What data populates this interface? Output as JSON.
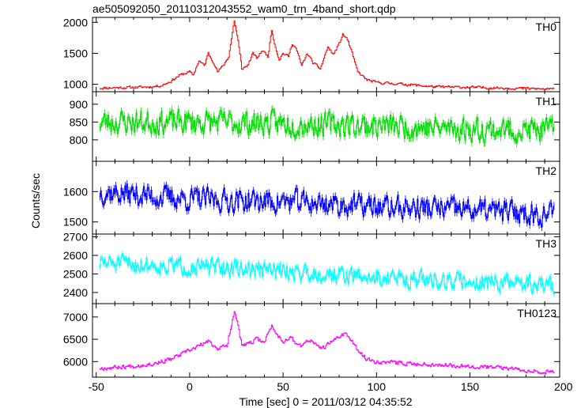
{
  "title": "ae505092050_20110312043552_wam0_trn_4band_short.qdp",
  "chart_data": {
    "type": "line",
    "title": "ae505092050_20110312043552_wam0_trn_4band_short.qdp",
    "xlabel": "Time [sec] 0 = 2011/03/12 04:35:52",
    "ylabel": "Counts/sec",
    "xlim": [
      -52,
      198
    ],
    "x_ticks": [
      -50,
      0,
      50,
      100,
      150,
      200
    ],
    "x_start": -48,
    "x_step": 0.5,
    "panels": [
      {
        "name": "TH0",
        "color": "#ff0000",
        "ylim": [
          880,
          2080
        ],
        "y_ticks": [
          1000,
          1500,
          2000
        ],
        "keypoints": [
          [
            -48,
            940
          ],
          [
            -30,
            950
          ],
          [
            -20,
            960
          ],
          [
            -15,
            980
          ],
          [
            -10,
            1050
          ],
          [
            -5,
            1150
          ],
          [
            0,
            1200
          ],
          [
            2,
            1150
          ],
          [
            5,
            1380
          ],
          [
            8,
            1300
          ],
          [
            10,
            1500
          ],
          [
            13,
            1350
          ],
          [
            15,
            1200
          ],
          [
            18,
            1300
          ],
          [
            21,
            1450
          ],
          [
            24,
            2030
          ],
          [
            26,
            1700
          ],
          [
            28,
            1250
          ],
          [
            31,
            1300
          ],
          [
            34,
            1500
          ],
          [
            36,
            1420
          ],
          [
            39,
            1550
          ],
          [
            42,
            1450
          ],
          [
            44,
            1880
          ],
          [
            46,
            1600
          ],
          [
            48,
            1400
          ],
          [
            50,
            1500
          ],
          [
            53,
            1450
          ],
          [
            55,
            1660
          ],
          [
            57,
            1580
          ],
          [
            60,
            1300
          ],
          [
            63,
            1500
          ],
          [
            66,
            1350
          ],
          [
            70,
            1250
          ],
          [
            74,
            1600
          ],
          [
            77,
            1480
          ],
          [
            80,
            1650
          ],
          [
            82,
            1800
          ],
          [
            84,
            1750
          ],
          [
            86,
            1600
          ],
          [
            90,
            1200
          ],
          [
            95,
            1070
          ],
          [
            100,
            1030
          ],
          [
            110,
            1010
          ],
          [
            120,
            990
          ],
          [
            130,
            960
          ],
          [
            150,
            950
          ],
          [
            170,
            940
          ],
          [
            195,
            920
          ]
        ],
        "noise": 25,
        "seed": 11
      },
      {
        "name": "TH1",
        "color": "#00dd00",
        "ylim": [
          740,
          935
        ],
        "y_ticks": [
          800,
          850,
          900
        ],
        "keypoints": [
          [
            -48,
            850
          ],
          [
            0,
            850
          ],
          [
            60,
            845
          ],
          [
            100,
            840
          ],
          [
            150,
            830
          ],
          [
            195,
            825
          ]
        ],
        "noise": 40,
        "seed": 23
      },
      {
        "name": "TH2",
        "color": "#0000ff",
        "ylim": [
          1460,
          1700
        ],
        "y_ticks": [
          1500,
          1600
        ],
        "keypoints": [
          [
            -48,
            1600
          ],
          [
            0,
            1575
          ],
          [
            60,
            1565
          ],
          [
            100,
            1550
          ],
          [
            150,
            1540
          ],
          [
            195,
            1525
          ]
        ],
        "noise": 45,
        "seed": 37
      },
      {
        "name": "TH3",
        "color": "#00ffff",
        "ylim": [
          2340,
          2715
        ],
        "y_ticks": [
          2400,
          2500,
          2600,
          2700
        ],
        "keypoints": [
          [
            -48,
            2560
          ],
          [
            0,
            2540
          ],
          [
            60,
            2510
          ],
          [
            100,
            2480
          ],
          [
            150,
            2460
          ],
          [
            195,
            2440
          ]
        ],
        "noise": 55,
        "seed": 51
      },
      {
        "name": "TH0123",
        "color": "#ff00ff",
        "ylim": [
          5650,
          7300
        ],
        "y_ticks": [
          6000,
          6500,
          7000
        ],
        "keypoints": [
          [
            -48,
            5850
          ],
          [
            -30,
            5900
          ],
          [
            -20,
            5950
          ],
          [
            -10,
            6050
          ],
          [
            -5,
            6150
          ],
          [
            0,
            6250
          ],
          [
            5,
            6350
          ],
          [
            10,
            6450
          ],
          [
            15,
            6300
          ],
          [
            20,
            6350
          ],
          [
            24,
            7150
          ],
          [
            26,
            6800
          ],
          [
            28,
            6350
          ],
          [
            32,
            6400
          ],
          [
            36,
            6500
          ],
          [
            40,
            6450
          ],
          [
            44,
            6800
          ],
          [
            47,
            6600
          ],
          [
            50,
            6450
          ],
          [
            54,
            6550
          ],
          [
            57,
            6400
          ],
          [
            60,
            6350
          ],
          [
            64,
            6500
          ],
          [
            68,
            6350
          ],
          [
            72,
            6300
          ],
          [
            76,
            6450
          ],
          [
            80,
            6550
          ],
          [
            83,
            6650
          ],
          [
            86,
            6500
          ],
          [
            90,
            6250
          ],
          [
            95,
            6050
          ],
          [
            100,
            6000
          ],
          [
            120,
            5950
          ],
          [
            150,
            5900
          ],
          [
            170,
            5850
          ],
          [
            195,
            5750
          ]
        ],
        "noise": 55,
        "seed": 67
      }
    ]
  }
}
